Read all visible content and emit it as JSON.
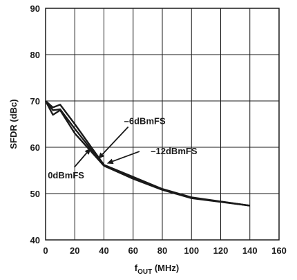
{
  "chart_data": {
    "type": "line",
    "xlabel_main": "f",
    "xlabel_sub": "OUT",
    "xlabel_unit": " (MHz)",
    "ylabel": "SFDR (dBc)",
    "xlim": [
      0,
      160
    ],
    "ylim": [
      40,
      90
    ],
    "xticks": [
      "0",
      "20",
      "40",
      "60",
      "80",
      "100",
      "120",
      "140",
      "160"
    ],
    "yticks": [
      "40",
      "50",
      "60",
      "70",
      "80",
      "90"
    ],
    "grid": true,
    "series": [
      {
        "name": "0dBmFS",
        "x": [
          0,
          5,
          10,
          20,
          40,
          60,
          80,
          100,
          140
        ],
        "y": [
          70,
          67,
          68,
          63,
          56,
          53.2,
          50.8,
          49,
          47.4
        ]
      },
      {
        "name": "-6dBmFS",
        "x": [
          0,
          5,
          10,
          20,
          40,
          60,
          80,
          100,
          140
        ],
        "y": [
          70,
          68,
          68.2,
          64,
          56,
          53.4,
          50.9,
          49.1,
          47.4
        ]
      },
      {
        "name": "-12dBmFS",
        "x": [
          0,
          5,
          10,
          20,
          40,
          60,
          80,
          100,
          140
        ],
        "y": [
          70,
          68.6,
          69.2,
          65,
          56.2,
          53.6,
          51,
          49.2,
          47.4
        ]
      }
    ],
    "annotations": [
      {
        "text": "–6dBmFS",
        "at": [
          36,
          57.5
        ],
        "label_at": [
          68,
          65
        ]
      },
      {
        "text": "–12dBmFS",
        "at": [
          42,
          56.5
        ],
        "label_at": [
          88,
          58.5
        ]
      },
      {
        "text": "0dBmFS",
        "at": [
          31,
          59.8
        ],
        "label_at": [
          14,
          53.3
        ]
      }
    ]
  }
}
